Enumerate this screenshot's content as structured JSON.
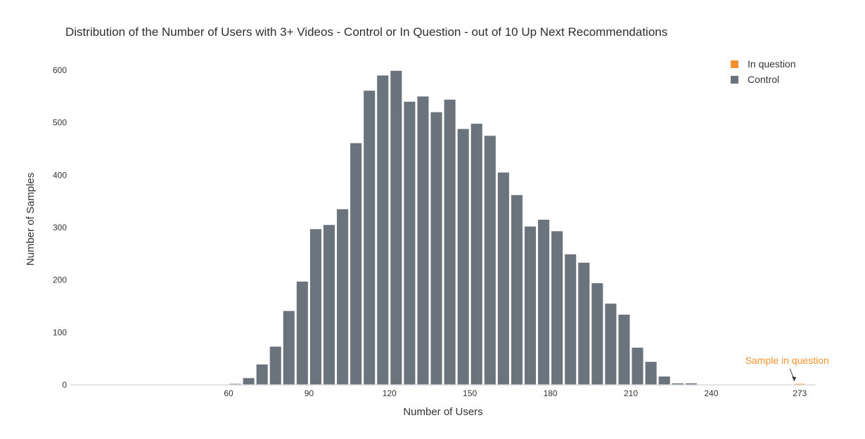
{
  "chart_data": {
    "type": "bar",
    "title": "Distribution of the Number of Users with 3+ Videos - Control or In Question - out of 10 Up Next Recommendations",
    "xlabel": "Number of Users",
    "ylabel": "Number of Samples",
    "ylim": [
      0,
      600
    ],
    "yticks": [
      0,
      100,
      200,
      300,
      400,
      500,
      600
    ],
    "xlim": [
      0,
      280
    ],
    "xticks": [
      60,
      90,
      120,
      150,
      180,
      210,
      240,
      273
    ],
    "bin_width": 5,
    "grid": false,
    "legend_position": "top-right",
    "series": [
      {
        "name": "Control",
        "color": "#6b737d",
        "x": [
          62.5,
          67.5,
          72.5,
          77.5,
          82.5,
          87.5,
          92.5,
          97.5,
          102.5,
          107.5,
          112.5,
          117.5,
          122.5,
          127.5,
          132.5,
          137.5,
          142.5,
          147.5,
          152.5,
          157.5,
          162.5,
          167.5,
          172.5,
          177.5,
          182.5,
          187.5,
          192.5,
          197.5,
          202.5,
          207.5,
          212.5,
          217.5,
          222.5,
          227.5,
          232.5
        ],
        "values": [
          2,
          13,
          39,
          73,
          141,
          197,
          297,
          305,
          335,
          461,
          561,
          590,
          599,
          540,
          550,
          520,
          544,
          488,
          498,
          475,
          405,
          362,
          302,
          315,
          293,
          249,
          233,
          194,
          155,
          134,
          71,
          44,
          16,
          3,
          3
        ]
      },
      {
        "name": "In question",
        "color": "#f5922f",
        "x": [
          273
        ],
        "values": [
          1
        ]
      }
    ],
    "annotations": [
      {
        "text": "Sample in question",
        "x": 273,
        "y": 1,
        "color": "#f5922f"
      }
    ]
  }
}
